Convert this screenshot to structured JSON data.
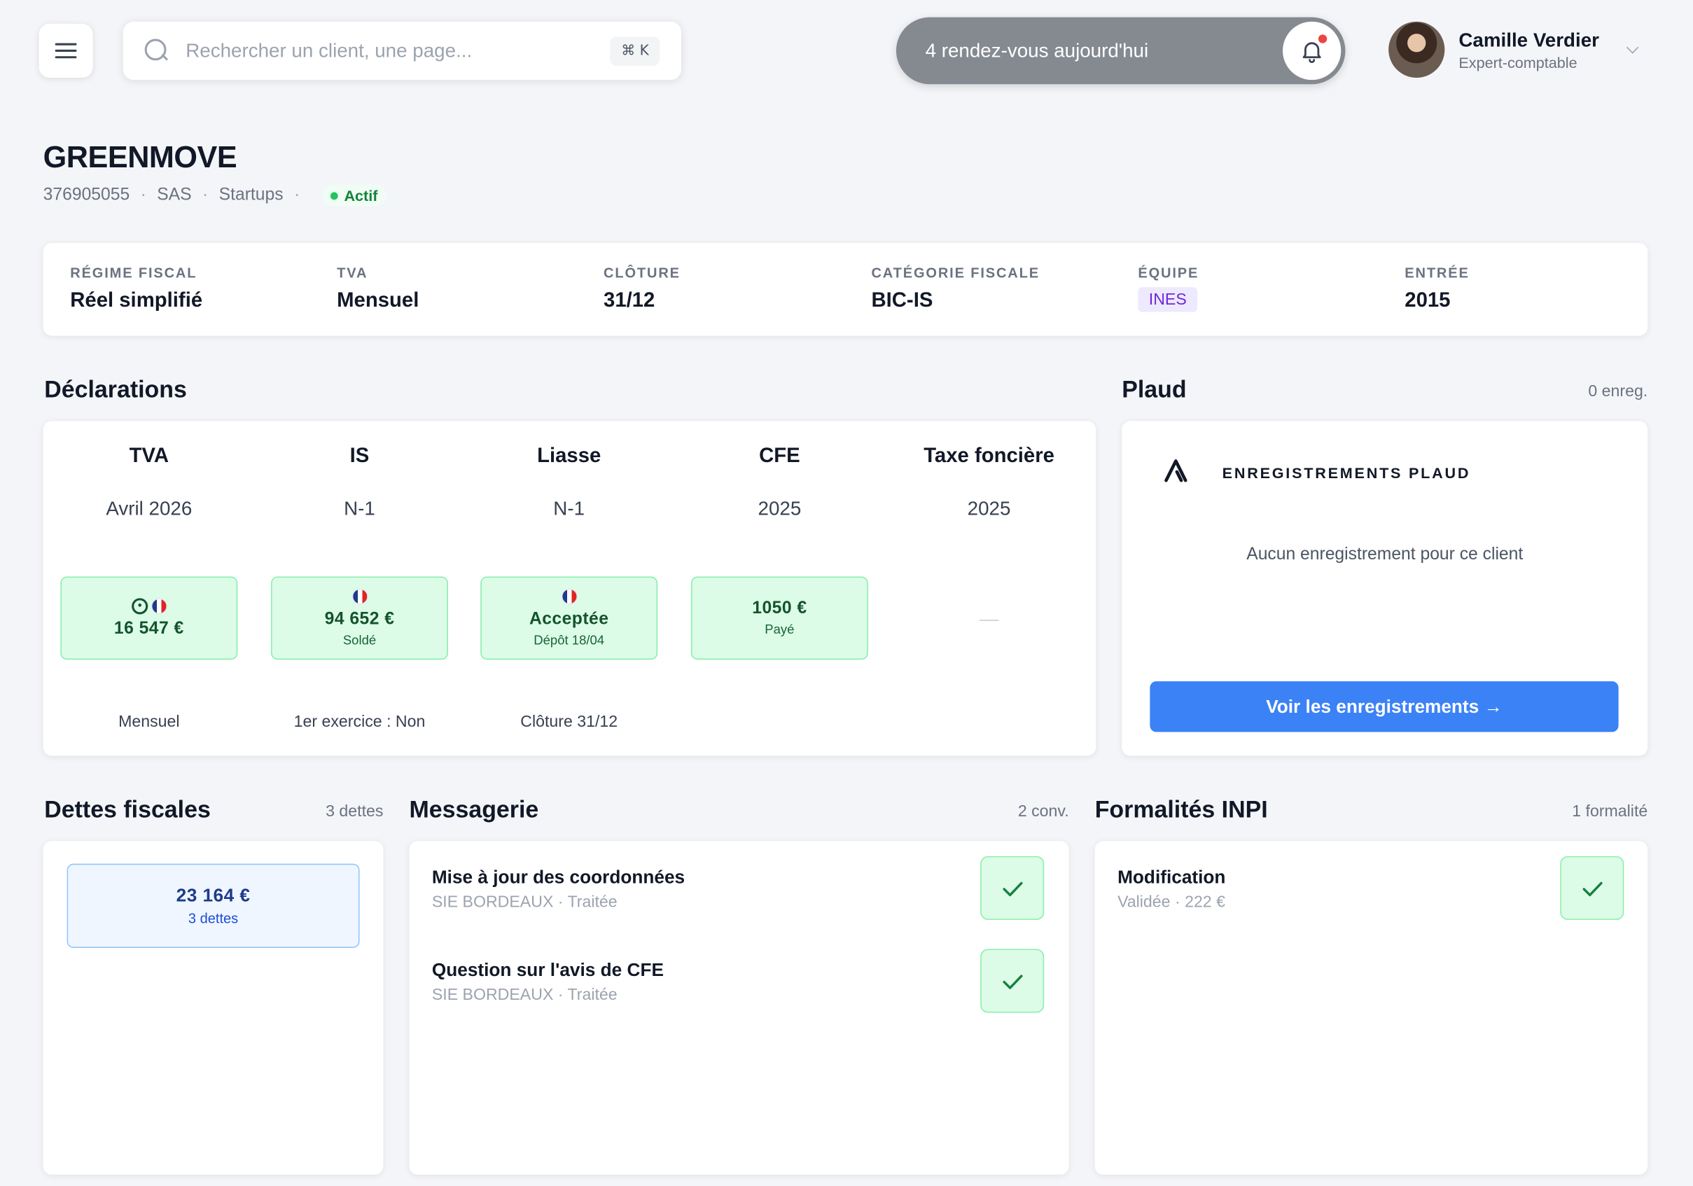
{
  "header": {
    "search": {
      "placeholder": "Rechercher un client, une page...",
      "shortcut": "⌘ K"
    },
    "appointments": {
      "label": "4 rendez-vous aujourd'hui"
    },
    "user": {
      "name": "Camille Verdier",
      "role": "Expert-comptable"
    }
  },
  "company": {
    "name": "GREENMOVE",
    "siren": "376905055",
    "legal_form": "SAS",
    "segment": "Startups",
    "status": "Actif",
    "status_color": "#22c55e"
  },
  "info": [
    {
      "label": "RÉGIME FISCAL",
      "value": "Réel simplifié"
    },
    {
      "label": "TVA",
      "value": "Mensuel"
    },
    {
      "label": "CLÔTURE",
      "value": "31/12"
    },
    {
      "label": "CATÉGORIE FISCALE",
      "value": "BIC-IS"
    },
    {
      "label": "ÉQUIPE",
      "value": "INES"
    },
    {
      "label": "ENTRÉE",
      "value": "2015"
    }
  ],
  "declarations": {
    "title": "Déclarations",
    "columns": [
      {
        "name": "TVA",
        "period": "Avril 2026",
        "amount": "16 547 €",
        "sub": "",
        "footer": "Mensuel",
        "icons": [
          "clock-icon",
          "flag-fr-icon"
        ]
      },
      {
        "name": "IS",
        "period": "N-1",
        "amount": "94 652 €",
        "sub": "Soldé",
        "footer": "1er exercice : Non",
        "icons": [
          "flag-fr-icon"
        ]
      },
      {
        "name": "Liasse",
        "period": "N-1",
        "amount": "Acceptée",
        "sub": "Dépôt 18/04",
        "footer": "Clôture 31/12",
        "icons": [
          "flag-fr-icon"
        ]
      },
      {
        "name": "CFE",
        "period": "2025",
        "amount": "1050 €",
        "sub": "Payé",
        "footer": "",
        "icons": []
      },
      {
        "name": "Taxe foncière",
        "period": "2025",
        "empty": "—",
        "footer": ""
      }
    ]
  },
  "plaud": {
    "title": "Plaud",
    "count": "0 enreg.",
    "label": "ENREGISTREMENTS PLAUD",
    "empty": "Aucun enregistrement pour ce client",
    "button": "Voir les enregistrements →",
    "accent": "#3b82f6"
  },
  "debts": {
    "title": "Dettes fiscales",
    "count": "3 dettes",
    "amount": "23 164 €",
    "sub": "3 dettes"
  },
  "messages": {
    "title": "Messagerie",
    "count": "2 conv.",
    "items": [
      {
        "title": "Mise à jour des coordonnées",
        "sub": "SIE BORDEAUX · Traitée"
      },
      {
        "title": "Question sur l'avis de CFE",
        "sub": "SIE BORDEAUX · Traitée"
      }
    ]
  },
  "inpi": {
    "title": "Formalités INPI",
    "count": "1 formalité",
    "items": [
      {
        "title": "Modification",
        "sub": "Validée · 222 €"
      }
    ]
  }
}
